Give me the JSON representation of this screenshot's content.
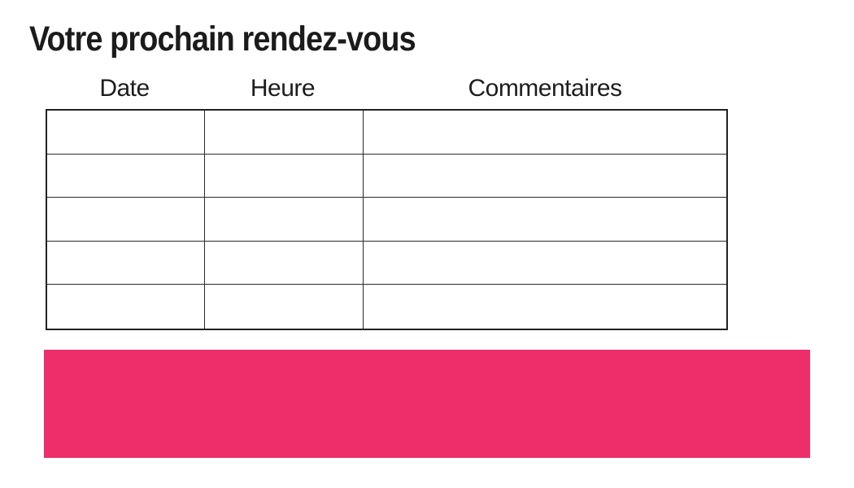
{
  "page": {
    "title": "Votre prochain rendez-vous",
    "background_color": "#ffffff",
    "text_color": "#1b1b1b"
  },
  "appointment_table": {
    "columns": [
      {
        "key": "date",
        "label": "Date"
      },
      {
        "key": "heure",
        "label": "Heure"
      },
      {
        "key": "commentaires",
        "label": "Commentaires"
      }
    ],
    "rows": [
      {
        "date": "",
        "heure": "",
        "commentaires": ""
      },
      {
        "date": "",
        "heure": "",
        "commentaires": ""
      },
      {
        "date": "",
        "heure": "",
        "commentaires": ""
      },
      {
        "date": "",
        "heure": "",
        "commentaires": ""
      },
      {
        "date": "",
        "heure": "",
        "commentaires": ""
      }
    ],
    "border_color": "#222222"
  },
  "banner": {
    "color": "#ee2e6b"
  }
}
